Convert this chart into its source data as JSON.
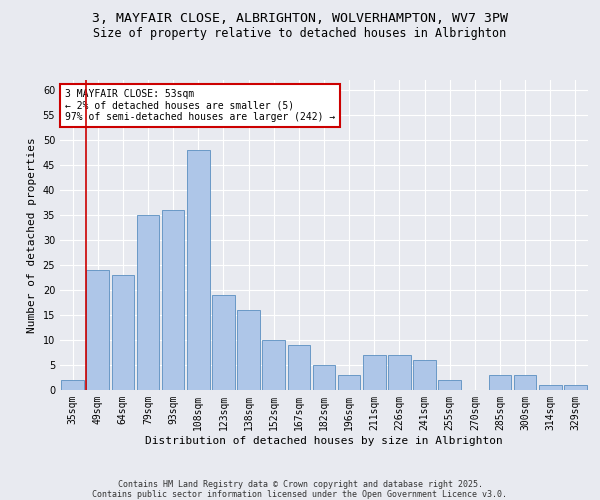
{
  "title_line1": "3, MAYFAIR CLOSE, ALBRIGHTON, WOLVERHAMPTON, WV7 3PW",
  "title_line2": "Size of property relative to detached houses in Albrighton",
  "xlabel": "Distribution of detached houses by size in Albrighton",
  "ylabel": "Number of detached properties",
  "categories": [
    "35sqm",
    "49sqm",
    "64sqm",
    "79sqm",
    "93sqm",
    "108sqm",
    "123sqm",
    "138sqm",
    "152sqm",
    "167sqm",
    "182sqm",
    "196sqm",
    "211sqm",
    "226sqm",
    "241sqm",
    "255sqm",
    "270sqm",
    "285sqm",
    "300sqm",
    "314sqm",
    "329sqm"
  ],
  "values": [
    2,
    24,
    23,
    35,
    36,
    48,
    19,
    16,
    10,
    9,
    5,
    3,
    7,
    7,
    6,
    2,
    0,
    3,
    3,
    1,
    1
  ],
  "bar_color": "#aec6e8",
  "bar_edge_color": "#5a8fc0",
  "background_color": "#e8eaf0",
  "grid_color": "#ffffff",
  "annotation_line1": "3 MAYFAIR CLOSE: 53sqm",
  "annotation_line2": "← 2% of detached houses are smaller (5)",
  "annotation_line3": "97% of semi-detached houses are larger (242) →",
  "annotation_box_color": "#cc0000",
  "redline_bar_index": 1,
  "ylim": [
    0,
    62
  ],
  "yticks": [
    0,
    5,
    10,
    15,
    20,
    25,
    30,
    35,
    40,
    45,
    50,
    55,
    60
  ],
  "footnote": "Contains HM Land Registry data © Crown copyright and database right 2025.\nContains public sector information licensed under the Open Government Licence v3.0.",
  "title_fontsize": 9.5,
  "subtitle_fontsize": 8.5,
  "axis_label_fontsize": 8,
  "tick_fontsize": 7,
  "annot_fontsize": 7,
  "footnote_fontsize": 6
}
